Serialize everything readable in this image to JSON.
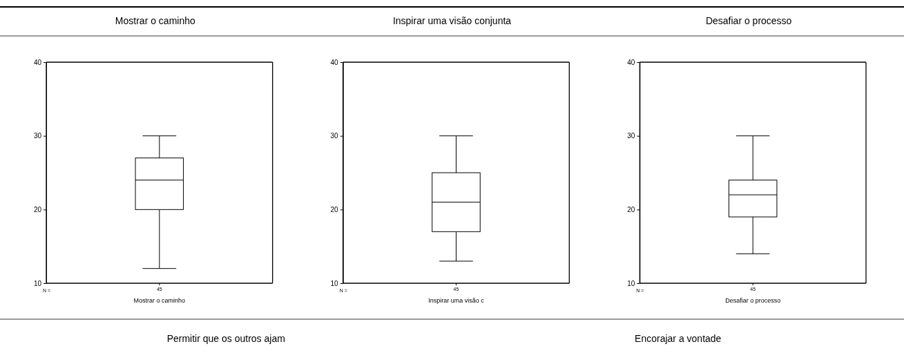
{
  "chart_data": [
    {
      "type": "box",
      "title": "Mostrar o caminho",
      "xlabel": "Mostrar o caminho",
      "categories": [
        "45"
      ],
      "boxes": [
        {
          "low": 12,
          "q1": 20,
          "median": 24,
          "q3": 27,
          "high": 30
        }
      ],
      "ylim": [
        10,
        40
      ],
      "yticks": [
        10,
        20,
        30,
        40
      ],
      "annotations": [
        "N ="
      ]
    },
    {
      "type": "box",
      "title": "Inspirar uma visão conjunta",
      "xlabel": "Inspirar uma visão c",
      "categories": [
        "45"
      ],
      "boxes": [
        {
          "low": 13,
          "q1": 17,
          "median": 21,
          "q3": 25,
          "high": 30
        }
      ],
      "ylim": [
        10,
        40
      ],
      "yticks": [
        10,
        20,
        30,
        40
      ],
      "annotations": [
        "N ="
      ]
    },
    {
      "type": "box",
      "title": "Desafiar o processo",
      "xlabel": "Desafiar o processo",
      "categories": [
        "45"
      ],
      "boxes": [
        {
          "low": 14,
          "q1": 19,
          "median": 22,
          "q3": 24,
          "high": 30
        }
      ],
      "ylim": [
        10,
        40
      ],
      "yticks": [
        10,
        20,
        30,
        40
      ],
      "annotations": [
        "N ="
      ]
    },
    {
      "type": "other",
      "title": "Permitir que os outros ajam"
    },
    {
      "type": "other",
      "title": "Encorajar a vontade"
    }
  ]
}
